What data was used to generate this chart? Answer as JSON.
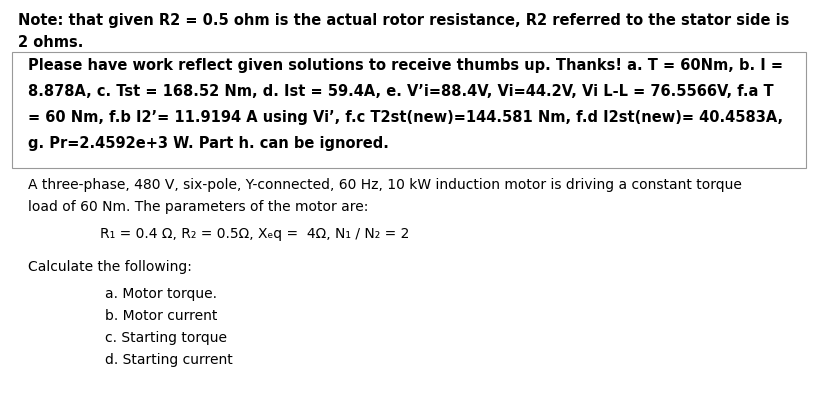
{
  "bg_color": "#ffffff",
  "fig_width": 8.21,
  "fig_height": 4.11,
  "dpi": 100,
  "note_line1": "Note: that given R2 = 0.5 ohm is the actual rotor resistance, R2 referred to the stator side is",
  "note_line2": "2 ohms.",
  "bold_line1": "Please have work reflect given solutions to receive thumbs up. Thanks! a. T = 60Nm, b. I =",
  "bold_line2": "8.878A, c. Tst = 168.52 Nm, d. Ist = 59.4A, e. V’i=88.4V, Vi=44.2V, Vi L-L = 76.5566V, f.a T",
  "bold_line3": "= 60 Nm, f.b I2’= 11.9194 A using Vi’, f.c T2st(new)=144.581 Nm, f.d I2st(new)= 40.4583A,",
  "bold_line4": "g. Pr=2.4592e+3 W. Part h. can be ignored.",
  "prob_line1": "A three-phase, 480 V, six-pole, Y-connected, 60 Hz, 10 kW induction motor is driving a constant torque",
  "prob_line2": "load of 60 Nm. The parameters of the motor are:",
  "eq_line": "R₁ = 0.4 Ω, R₂ = 0.5Ω, Xₑq =  4Ω, N₁ / N₂ = 2",
  "calc_label": "Calculate the following:",
  "items": [
    "a. Motor torque.",
    "b. Motor current",
    "c. Starting torque",
    "d. Starting current"
  ],
  "text_color": "#000000",
  "note_fontsize": 10.5,
  "bold_fontsize": 10.5,
  "body_fontsize": 10.0
}
